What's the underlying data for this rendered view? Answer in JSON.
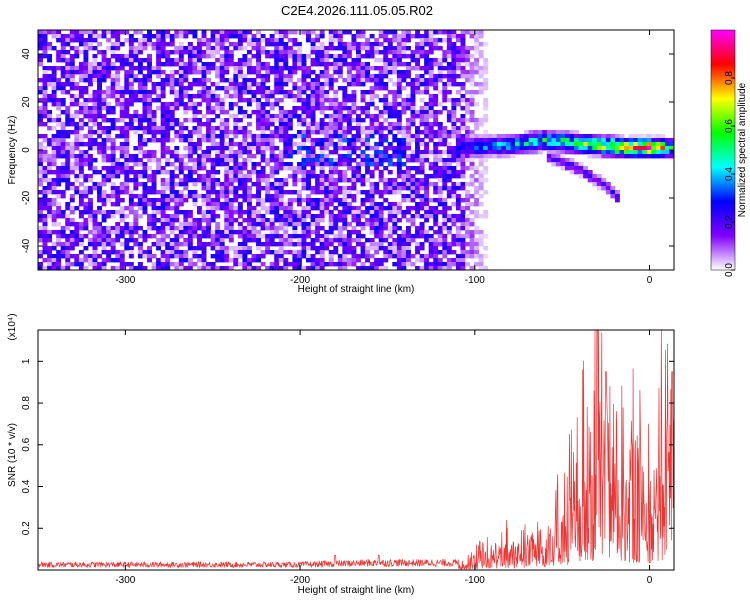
{
  "chart_data": [
    {
      "type": "heatmap",
      "title": "C2E4.2026.111.05.05.R02",
      "xlabel": "Height of straight line (km)",
      "ylabel": "Frequency (Hz)",
      "xlim": [
        -350,
        14
      ],
      "ylim": [
        -50,
        50
      ],
      "xticks": [
        -300,
        -200,
        -100,
        0
      ],
      "yticks": [
        -40,
        -20,
        0,
        20,
        40
      ],
      "colorbar": {
        "label": "Normalized spectral amplitude",
        "range": [
          0,
          1
        ],
        "ticks": [
          "0.0",
          "0.2",
          "0.4",
          "0.6",
          "0.8"
        ],
        "tick_values": [
          0.0,
          0.2,
          0.4,
          0.6,
          0.8
        ],
        "colors": [
          "#ffffff",
          "#8000ff",
          "#0000ff",
          "#00ffff",
          "#00ff00",
          "#ffff00",
          "#ff0000",
          "#ff00ff"
        ]
      },
      "features": {
        "noise_region_x": [
          -350,
          -105
        ],
        "noise_level": 0.15,
        "signal_ridge": [
          {
            "x": -110,
            "y": 1,
            "amp": 0.35
          },
          {
            "x": -80,
            "y": 2,
            "amp": 0.45
          },
          {
            "x": -60,
            "y": 4,
            "amp": 0.55
          },
          {
            "x": -45,
            "y": 3,
            "amp": 0.6
          },
          {
            "x": -30,
            "y": 2,
            "amp": 0.7
          },
          {
            "x": -15,
            "y": 1,
            "amp": 0.85
          },
          {
            "x": 0,
            "y": 1,
            "amp": 0.95
          },
          {
            "x": 12,
            "y": 1,
            "amp": 0.6
          }
        ],
        "signal_branch": [
          {
            "x": -60,
            "y": -2
          },
          {
            "x": -40,
            "y": -8
          },
          {
            "x": -25,
            "y": -15
          },
          {
            "x": -18,
            "y": -20
          }
        ]
      }
    },
    {
      "type": "line",
      "xlabel": "Height of straight line (km)",
      "ylabel": "SNR (10 * v/v)",
      "y_multiplier_label": "(x10⁴)",
      "xlim": [
        -350,
        14
      ],
      "ylim": [
        0,
        1.15
      ],
      "xticks": [
        -300,
        -200,
        -100,
        0
      ],
      "yticks": [
        0.2,
        0.4,
        0.6,
        0.8,
        1.0
      ],
      "ytick_labels": [
        "0.2",
        "0.4",
        "0.6",
        "0.8",
        "1"
      ],
      "series": [
        {
          "color": "#ee3333",
          "envelope": [
            {
              "x": -350,
              "y": 0.03
            },
            {
              "x": -200,
              "y": 0.03
            },
            {
              "x": -160,
              "y": 0.04
            },
            {
              "x": -110,
              "y": 0.04
            },
            {
              "x": -100,
              "y": 0.08
            },
            {
              "x": -80,
              "y": 0.15
            },
            {
              "x": -60,
              "y": 0.22
            },
            {
              "x": -50,
              "y": 0.3
            },
            {
              "x": -40,
              "y": 0.6
            },
            {
              "x": -30,
              "y": 0.85
            },
            {
              "x": -20,
              "y": 0.7
            },
            {
              "x": -10,
              "y": 0.6
            },
            {
              "x": 0,
              "y": 0.65
            },
            {
              "x": 14,
              "y": 0.9
            }
          ],
          "peaks": [
            {
              "x": -30,
              "y": 1.15
            },
            {
              "x": -25,
              "y": 0.95
            },
            {
              "x": 13,
              "y": 0.95
            },
            {
              "x": -180,
              "y": 0.07
            },
            {
              "x": -155,
              "y": 0.07
            }
          ]
        }
      ]
    }
  ]
}
